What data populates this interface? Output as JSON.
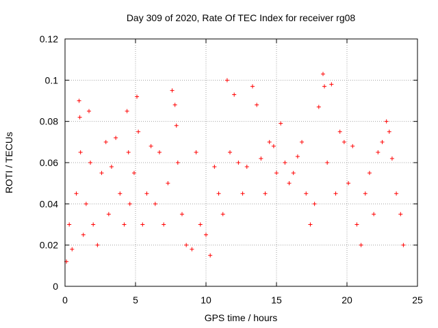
{
  "chart_data": {
    "type": "scatter",
    "title": "Day 309 of 2020, Rate Of TEC Index for receiver rg08",
    "xlabel": "GPS time / hours",
    "ylabel": "ROTI / TECUs",
    "xlim": [
      0,
      25
    ],
    "ylim": [
      0,
      0.12
    ],
    "x_ticks": [
      "0",
      "5",
      "10",
      "15",
      "20",
      "25"
    ],
    "y_ticks": [
      "0",
      "0.02",
      "0.04",
      "0.06",
      "0.08",
      "0.1",
      "0.12"
    ],
    "grid": true,
    "marker": "plus",
    "color": "#ff0000",
    "x": [
      0.1,
      0.3,
      0.5,
      0.8,
      1.0,
      1.05,
      1.1,
      1.3,
      1.5,
      1.7,
      1.8,
      2.0,
      2.3,
      2.6,
      2.9,
      3.1,
      3.3,
      3.6,
      3.9,
      4.2,
      4.4,
      4.5,
      4.6,
      4.9,
      5.1,
      5.2,
      5.5,
      5.8,
      6.1,
      6.4,
      6.7,
      7.0,
      7.3,
      7.6,
      7.8,
      7.9,
      8.0,
      8.3,
      8.6,
      9.0,
      9.3,
      9.6,
      10.0,
      10.3,
      10.6,
      10.9,
      11.2,
      11.5,
      11.7,
      12.0,
      12.3,
      12.6,
      12.9,
      13.3,
      13.6,
      13.9,
      14.2,
      14.5,
      14.8,
      15.0,
      15.3,
      15.6,
      15.9,
      16.2,
      16.5,
      16.8,
      17.1,
      17.4,
      17.7,
      18.0,
      18.3,
      18.4,
      18.6,
      18.9,
      19.2,
      19.5,
      19.8,
      20.1,
      20.4,
      20.7,
      21.0,
      21.3,
      21.6,
      21.9,
      22.2,
      22.5,
      22.8,
      23.0,
      23.2,
      23.5,
      23.8,
      24.0
    ],
    "y": [
      0.012,
      0.03,
      0.018,
      0.045,
      0.09,
      0.082,
      0.065,
      0.025,
      0.04,
      0.085,
      0.06,
      0.03,
      0.02,
      0.055,
      0.07,
      0.035,
      0.058,
      0.072,
      0.045,
      0.03,
      0.085,
      0.065,
      0.04,
      0.055,
      0.092,
      0.075,
      0.03,
      0.045,
      0.068,
      0.04,
      0.065,
      0.03,
      0.05,
      0.095,
      0.088,
      0.078,
      0.06,
      0.035,
      0.02,
      0.018,
      0.065,
      0.03,
      0.025,
      0.015,
      0.058,
      0.045,
      0.035,
      0.1,
      0.065,
      0.093,
      0.06,
      0.045,
      0.058,
      0.097,
      0.088,
      0.062,
      0.045,
      0.07,
      0.068,
      0.055,
      0.079,
      0.06,
      0.05,
      0.055,
      0.063,
      0.07,
      0.045,
      0.03,
      0.04,
      0.087,
      0.103,
      0.097,
      0.06,
      0.098,
      0.045,
      0.075,
      0.07,
      0.05,
      0.068,
      0.03,
      0.02,
      0.045,
      0.055,
      0.035,
      0.065,
      0.07,
      0.08,
      0.075,
      0.062,
      0.045,
      0.035,
      0.02
    ]
  }
}
